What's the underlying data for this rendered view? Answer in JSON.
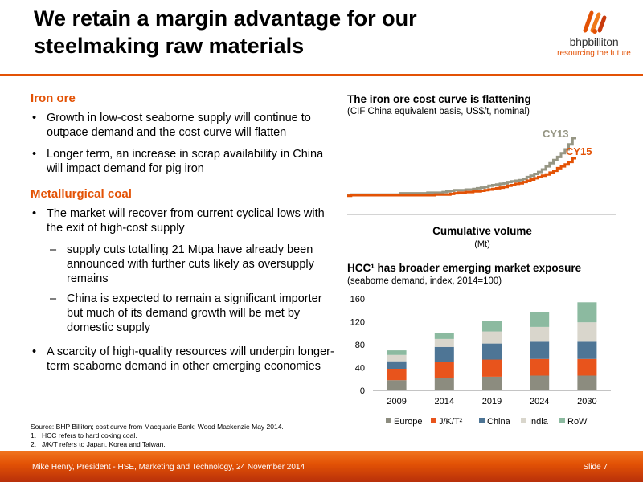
{
  "slide": {
    "title_line1": "We retain a margin advantage for our",
    "title_line2": "steelmaking raw materials",
    "logo_brand": "bhpbilliton",
    "logo_tagline": "resourcing the future"
  },
  "left": {
    "iron_ore_heading": "Iron ore",
    "iron_bullets": [
      "Growth in low-cost seaborne supply will continue to outpace demand and the cost curve will flatten",
      "Longer term, an increase in scrap availability in China will impact demand for pig iron"
    ],
    "coal_heading": "Metallurgical coal",
    "coal_bullet1": "The market will recover from current cyclical lows with the exit of high-cost supply",
    "coal_subbullets": [
      "supply cuts totalling 21 Mtpa have already been announced with further cuts likely as oversupply remains",
      "China is expected to remain a significant importer but much of its demand growth will be met by domestic supply"
    ],
    "coal_bullet2": "A scarcity of high-quality resources will underpin longer-term seaborne demand in other emerging economies",
    "bullet_glyph": "•",
    "dash_glyph": "–"
  },
  "footnotes": {
    "source": "Source:   BHP Billiton; cost curve from Macquarie Bank; Wood Mackenzie May 2014.",
    "notes": [
      {
        "num": "1.",
        "text": "HCC refers to hard coking coal."
      },
      {
        "num": "2.",
        "text": "J/K/T refers to Japan, Korea and Taiwan."
      }
    ]
  },
  "footer": {
    "left": "Mike Henry, President - HSE, Marketing and Technology, 24 November 2014",
    "right": "Slide 7"
  },
  "colors": {
    "accent": "#e35205",
    "cy13": "#969684",
    "cy15": "#e35205",
    "europe": "#8c8c7f",
    "jkt": "#e8541c",
    "china": "#4e7595",
    "india": "#d9d6cc",
    "row": "#8cbaa0"
  },
  "chart_data": [
    {
      "type": "line",
      "title": "The iron ore cost curve is flattening",
      "subtitle": "(CIF China equivalent basis, US$/t, nominal)",
      "xlabel": "Cumulative volume",
      "xunit": "(Mt)",
      "ylabel": "",
      "series": [
        {
          "name": "CY13",
          "values": [
            9,
            10,
            10,
            10,
            10,
            10,
            10,
            10,
            10,
            10,
            10,
            10,
            10,
            10,
            12,
            12,
            12,
            12,
            12,
            12,
            12,
            13,
            13,
            13,
            13,
            14,
            15,
            16,
            17,
            17,
            17,
            18,
            18,
            19,
            20,
            21,
            22,
            24,
            25,
            26,
            27,
            28,
            30,
            31,
            32,
            33,
            35,
            38,
            40,
            43,
            46,
            50,
            55,
            60,
            65,
            70,
            76,
            82,
            90,
            100
          ]
        },
        {
          "name": "CY15",
          "values": [
            8,
            9,
            9,
            9,
            9,
            9,
            9,
            9,
            9,
            9,
            9,
            9,
            9,
            9,
            9,
            9,
            9,
            9,
            9,
            9,
            9,
            9,
            9,
            10,
            10,
            10,
            10,
            11,
            12,
            13,
            13,
            14,
            14,
            15,
            15,
            16,
            17,
            18,
            19,
            20,
            21,
            22,
            24,
            25,
            27,
            28,
            30,
            32,
            34,
            36,
            38,
            40,
            42,
            45,
            48,
            52,
            55,
            58,
            62,
            68
          ]
        }
      ]
    },
    {
      "type": "bar",
      "stacked": true,
      "title": "HCC¹ has broader emerging market exposure",
      "subtitle": "(seaborne demand, index, 2014=100)",
      "categories": [
        "2009",
        "2014",
        "2019",
        "2024",
        "2030"
      ],
      "ylim": [
        0,
        160
      ],
      "yticks": [
        0,
        40,
        80,
        120,
        160
      ],
      "series": [
        {
          "name": "Europe",
          "values": [
            18,
            22,
            24,
            26,
            26
          ]
        },
        {
          "name": "J/K/T²",
          "values": [
            20,
            28,
            30,
            29,
            29
          ]
        },
        {
          "name": "China",
          "values": [
            13,
            26,
            28,
            30,
            30
          ]
        },
        {
          "name": "India",
          "values": [
            11,
            14,
            21,
            26,
            34
          ]
        },
        {
          "name": "RoW",
          "values": [
            8,
            10,
            19,
            26,
            35
          ]
        }
      ]
    }
  ]
}
